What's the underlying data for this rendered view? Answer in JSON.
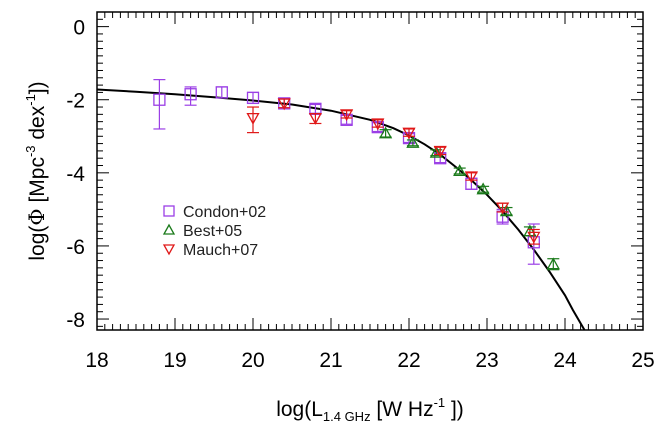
{
  "chart_data": {
    "type": "scatter",
    "xlabel": {
      "pre": "log(L",
      "sub": "1.4 GHz",
      "mid": " [W Hz",
      "sup": "-1",
      "post": " ])"
    },
    "ylabel": {
      "pre": "log(",
      "phi": "Φ",
      "mid": " [Mpc",
      "sup1": "-3",
      "mid2": " dex",
      "sup2": "-1",
      "post": "])"
    },
    "xlim": [
      18,
      25
    ],
    "ylim": [
      -8.3,
      0.4
    ],
    "xticks": [
      18,
      19,
      20,
      21,
      22,
      23,
      24,
      25
    ],
    "xtick_labels": [
      "18",
      "19",
      "20",
      "21",
      "22",
      "23",
      "24",
      "25"
    ],
    "yticks": [
      0,
      -2,
      -4,
      -6,
      -8
    ],
    "ytick_labels": [
      "0",
      "-2",
      "-4",
      "-6",
      "-8"
    ],
    "grid": false,
    "legend_position": "middle-left",
    "series": [
      {
        "name": "Condon+02",
        "marker": "square",
        "color": "#9b3fe6",
        "points": [
          {
            "x": 18.8,
            "y": -2.0,
            "err_lo": 0.8,
            "err_hi": 0.55
          },
          {
            "x": 19.2,
            "y": -1.85,
            "err_lo": 0.3,
            "err_hi": 0.2
          },
          {
            "x": 19.6,
            "y": -1.8,
            "err_lo": 0.15,
            "err_hi": 0.15
          },
          {
            "x": 20.0,
            "y": -1.95,
            "err_lo": 0.15,
            "err_hi": 0.15
          },
          {
            "x": 20.4,
            "y": -2.1,
            "err_lo": 0.12,
            "err_hi": 0.12
          },
          {
            "x": 20.8,
            "y": -2.25,
            "err_lo": 0.12,
            "err_hi": 0.12
          },
          {
            "x": 21.2,
            "y": -2.55,
            "err_lo": 0.12,
            "err_hi": 0.12
          },
          {
            "x": 21.6,
            "y": -2.75,
            "err_lo": 0.12,
            "err_hi": 0.12
          },
          {
            "x": 22.0,
            "y": -3.05,
            "err_lo": 0.12,
            "err_hi": 0.12
          },
          {
            "x": 22.4,
            "y": -3.6,
            "err_lo": 0.12,
            "err_hi": 0.12
          },
          {
            "x": 22.8,
            "y": -4.3,
            "err_lo": 0.15,
            "err_hi": 0.15
          },
          {
            "x": 23.2,
            "y": -5.2,
            "err_lo": 0.2,
            "err_hi": 0.2
          },
          {
            "x": 23.6,
            "y": -5.9,
            "err_lo": 0.6,
            "err_hi": 0.5
          }
        ]
      },
      {
        "name": "Best+05",
        "marker": "triangle-up",
        "color": "#1a7a1a",
        "points": [
          {
            "x": 21.7,
            "y": -2.92,
            "err_lo": 0.1,
            "err_hi": 0.1
          },
          {
            "x": 22.05,
            "y": -3.18,
            "err_lo": 0.08,
            "err_hi": 0.08
          },
          {
            "x": 22.35,
            "y": -3.45,
            "err_lo": 0.08,
            "err_hi": 0.08
          },
          {
            "x": 22.65,
            "y": -3.95,
            "err_lo": 0.08,
            "err_hi": 0.08
          },
          {
            "x": 22.95,
            "y": -4.45,
            "err_lo": 0.08,
            "err_hi": 0.08
          },
          {
            "x": 23.25,
            "y": -5.05,
            "err_lo": 0.1,
            "err_hi": 0.1
          },
          {
            "x": 23.55,
            "y": -5.6,
            "err_lo": 0.12,
            "err_hi": 0.12
          },
          {
            "x": 23.85,
            "y": -6.5,
            "err_lo": 0.15,
            "err_hi": 0.15
          }
        ]
      },
      {
        "name": "Mauch+07",
        "marker": "triangle-down",
        "color": "#e01818",
        "points": [
          {
            "x": 20.0,
            "y": -2.5,
            "err_lo": 0.4,
            "err_hi": 0.3
          },
          {
            "x": 20.4,
            "y": -2.1,
            "err_lo": 0.12,
            "err_hi": 0.12
          },
          {
            "x": 20.8,
            "y": -2.5,
            "err_lo": 0.15,
            "err_hi": 0.12
          },
          {
            "x": 21.2,
            "y": -2.4,
            "err_lo": 0.1,
            "err_hi": 0.1
          },
          {
            "x": 21.6,
            "y": -2.65,
            "err_lo": 0.1,
            "err_hi": 0.1
          },
          {
            "x": 22.0,
            "y": -2.9,
            "err_lo": 0.1,
            "err_hi": 0.1
          },
          {
            "x": 22.4,
            "y": -3.4,
            "err_lo": 0.1,
            "err_hi": 0.1
          },
          {
            "x": 22.8,
            "y": -4.1,
            "err_lo": 0.1,
            "err_hi": 0.1
          },
          {
            "x": 23.2,
            "y": -4.95,
            "err_lo": 0.12,
            "err_hi": 0.12
          },
          {
            "x": 23.6,
            "y": -5.75,
            "err_lo": 0.2,
            "err_hi": 0.2
          }
        ]
      }
    ],
    "fit_curve": {
      "color": "#000000",
      "x": [
        18.0,
        18.5,
        19.0,
        19.5,
        20.0,
        20.5,
        21.0,
        21.5,
        21.8,
        22.0,
        22.2,
        22.4,
        22.6,
        22.8,
        23.0,
        23.2,
        23.4,
        23.6,
        23.8,
        24.0,
        24.1,
        24.25
      ],
      "y": [
        -1.72,
        -1.78,
        -1.85,
        -1.93,
        -2.02,
        -2.13,
        -2.3,
        -2.55,
        -2.78,
        -2.98,
        -3.22,
        -3.5,
        -3.84,
        -4.2,
        -4.6,
        -5.05,
        -5.55,
        -6.1,
        -6.7,
        -7.35,
        -7.75,
        -8.3
      ]
    }
  }
}
